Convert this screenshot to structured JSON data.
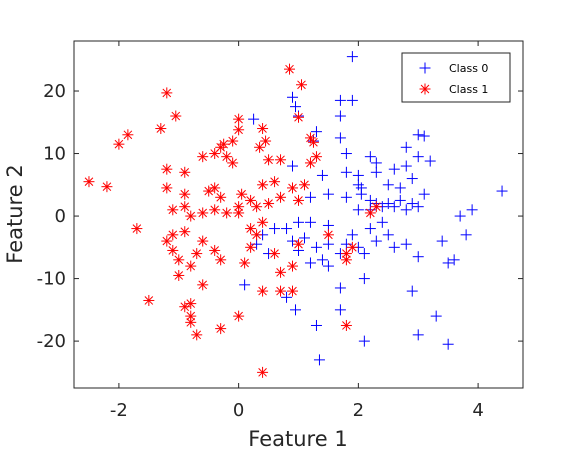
{
  "chart_data": {
    "type": "scatter",
    "title": "",
    "xlabel": "Feature 1",
    "ylabel": "Feature 2",
    "xlim": [
      -2.75,
      4.75
    ],
    "ylim": [
      -27.5,
      28
    ],
    "xticks": [
      -2,
      0,
      2,
      4
    ],
    "yticks": [
      -20,
      -10,
      0,
      10,
      20
    ],
    "grid": false,
    "legend_position": "top-right",
    "series": [
      {
        "name": "Class 0",
        "marker": "plus",
        "color": "#0000ff",
        "points": [
          [
            1.9,
            25.5
          ],
          [
            0.9,
            19
          ],
          [
            1.7,
            18.5
          ],
          [
            1.9,
            18.5
          ],
          [
            0.25,
            15.5
          ],
          [
            0.95,
            17.5
          ],
          [
            1.0,
            16
          ],
          [
            1.3,
            13.5
          ],
          [
            1.7,
            16
          ],
          [
            1.7,
            12.5
          ],
          [
            1.25,
            12
          ],
          [
            3.1,
            12.8
          ],
          [
            3.0,
            13.0
          ],
          [
            2.8,
            11
          ],
          [
            3.0,
            9.5
          ],
          [
            2.2,
            9.5
          ],
          [
            2.3,
            8.5
          ],
          [
            1.8,
            10
          ],
          [
            0.9,
            8
          ],
          [
            1.4,
            6.5
          ],
          [
            1.8,
            7
          ],
          [
            2.0,
            6.5
          ],
          [
            2.3,
            7
          ],
          [
            2.6,
            7.5
          ],
          [
            2.8,
            8
          ],
          [
            3.2,
            8.8
          ],
          [
            2.0,
            5
          ],
          [
            2.05,
            4.5
          ],
          [
            2.5,
            5
          ],
          [
            2.7,
            4.5
          ],
          [
            2.9,
            6
          ],
          [
            3.1,
            3.5
          ],
          [
            1.2,
            3
          ],
          [
            1.5,
            3.5
          ],
          [
            1.8,
            3
          ],
          [
            2.05,
            3.5
          ],
          [
            2.2,
            2.5
          ],
          [
            2.3,
            2
          ],
          [
            2.4,
            1.5
          ],
          [
            2.5,
            2
          ],
          [
            2.6,
            1.5
          ],
          [
            2.7,
            2.5
          ],
          [
            2.9,
            2
          ],
          [
            2.0,
            1
          ],
          [
            2.2,
            1
          ],
          [
            2.8,
            1
          ],
          [
            3.0,
            1.5
          ],
          [
            4.4,
            4
          ],
          [
            3.9,
            1
          ],
          [
            3.7,
            0
          ],
          [
            3.8,
            -3
          ],
          [
            3.6,
            -7
          ],
          [
            3.5,
            -7.5
          ],
          [
            3.5,
            -20.5
          ],
          [
            3.4,
            -4
          ],
          [
            3.3,
            -16
          ],
          [
            3.0,
            -19
          ],
          [
            2.9,
            -12
          ],
          [
            3.0,
            -6.5
          ],
          [
            2.8,
            -4.5
          ],
          [
            2.6,
            -5
          ],
          [
            2.5,
            -3
          ],
          [
            2.3,
            -4
          ],
          [
            2.1,
            -6
          ],
          [
            1.8,
            -4.5
          ],
          [
            1.9,
            -3
          ],
          [
            2.0,
            -5
          ],
          [
            2.2,
            -2
          ],
          [
            2.4,
            -1
          ],
          [
            2.1,
            -10
          ],
          [
            2.1,
            -20
          ],
          [
            1.7,
            -11.5
          ],
          [
            1.7,
            -15
          ],
          [
            1.7,
            -6
          ],
          [
            1.5,
            -4.5
          ],
          [
            1.3,
            -5
          ],
          [
            1.4,
            -7
          ],
          [
            1.5,
            -8
          ],
          [
            1.2,
            -7.5
          ],
          [
            1.1,
            -3.5
          ],
          [
            0.9,
            -4
          ],
          [
            1.0,
            -5.5
          ],
          [
            0.8,
            -2
          ],
          [
            1.0,
            -1
          ],
          [
            1.3,
            -17.5
          ],
          [
            1.35,
            -23
          ],
          [
            0.8,
            -13
          ],
          [
            0.95,
            -15
          ],
          [
            0.5,
            -6
          ],
          [
            0.4,
            -3
          ],
          [
            0.3,
            -4.5
          ],
          [
            0.1,
            -11
          ],
          [
            0.6,
            -2
          ],
          [
            1.2,
            -1
          ],
          [
            1.5,
            -1.5
          ]
        ]
      },
      {
        "name": "Class 1",
        "marker": "asterisk",
        "color": "#ff0000",
        "points": [
          [
            0.85,
            23.5
          ],
          [
            1.05,
            21
          ],
          [
            -1.2,
            19.7
          ],
          [
            1.0,
            15.8
          ],
          [
            -1.05,
            16
          ],
          [
            -2.0,
            11.5
          ],
          [
            -1.85,
            13
          ],
          [
            -1.3,
            14
          ],
          [
            0.0,
            15.5
          ],
          [
            0.4,
            14
          ],
          [
            0.0,
            13.8
          ],
          [
            1.25,
            11.8
          ],
          [
            1.2,
            12.5
          ],
          [
            1.3,
            9.5
          ],
          [
            -0.1,
            12
          ],
          [
            -0.25,
            11.5
          ],
          [
            -0.3,
            11
          ],
          [
            0.35,
            11
          ],
          [
            0.45,
            12
          ],
          [
            -0.6,
            9.5
          ],
          [
            -0.4,
            10
          ],
          [
            -0.2,
            9.5
          ],
          [
            -0.1,
            8.5
          ],
          [
            0.5,
            9
          ],
          [
            0.7,
            9
          ],
          [
            1.2,
            8.5
          ],
          [
            -1.2,
            7.5
          ],
          [
            -0.9,
            7
          ],
          [
            -1.2,
            4.5
          ],
          [
            -0.9,
            3.5
          ],
          [
            -0.5,
            4
          ],
          [
            -0.4,
            4.5
          ],
          [
            -0.3,
            3
          ],
          [
            0.05,
            3.5
          ],
          [
            0.2,
            2.5
          ],
          [
            0.4,
            5
          ],
          [
            0.6,
            5.5
          ],
          [
            0.9,
            4.5
          ],
          [
            1.1,
            5
          ],
          [
            -2.5,
            5.5
          ],
          [
            -2.2,
            4.7
          ],
          [
            -1.1,
            1
          ],
          [
            -0.9,
            1.5
          ],
          [
            -0.8,
            0
          ],
          [
            -0.6,
            0.5
          ],
          [
            -0.4,
            1
          ],
          [
            -0.2,
            0.5
          ],
          [
            0.0,
            1.5
          ],
          [
            0.0,
            0.5
          ],
          [
            0.3,
            1.5
          ],
          [
            0.5,
            2
          ],
          [
            0.7,
            3
          ],
          [
            1.0,
            2.5
          ],
          [
            2.3,
            1.5
          ],
          [
            2.2,
            0.5
          ],
          [
            -1.7,
            -2
          ],
          [
            -1.1,
            -3
          ],
          [
            -0.9,
            -2.5
          ],
          [
            -0.6,
            -4
          ],
          [
            -0.4,
            -5.5
          ],
          [
            -0.3,
            -7
          ],
          [
            -0.7,
            -6
          ],
          [
            -0.8,
            -8
          ],
          [
            -1.0,
            -7
          ],
          [
            -1.1,
            -5.5
          ],
          [
            -1.2,
            -4
          ],
          [
            -1.0,
            -9.5
          ],
          [
            -0.6,
            -11
          ],
          [
            0.1,
            -7.5
          ],
          [
            0.2,
            -5
          ],
          [
            0.3,
            -3
          ],
          [
            0.6,
            -6
          ],
          [
            0.7,
            -9
          ],
          [
            0.9,
            -8
          ],
          [
            1.0,
            -4.5
          ],
          [
            0.2,
            -2
          ],
          [
            0.4,
            -1
          ],
          [
            1.5,
            -3
          ],
          [
            1.8,
            -6
          ],
          [
            1.9,
            -5
          ],
          [
            1.8,
            -7
          ],
          [
            -1.5,
            -13.5
          ],
          [
            -0.9,
            -14.5
          ],
          [
            -0.8,
            -14
          ],
          [
            -0.8,
            -16
          ],
          [
            -0.8,
            -17
          ],
          [
            -0.7,
            -19
          ],
          [
            0.0,
            -16
          ],
          [
            0.4,
            -12
          ],
          [
            0.7,
            -12
          ],
          [
            0.9,
            -12
          ],
          [
            1.8,
            -17.5
          ],
          [
            0.4,
            -25
          ],
          [
            -0.3,
            -18
          ]
        ]
      }
    ]
  }
}
